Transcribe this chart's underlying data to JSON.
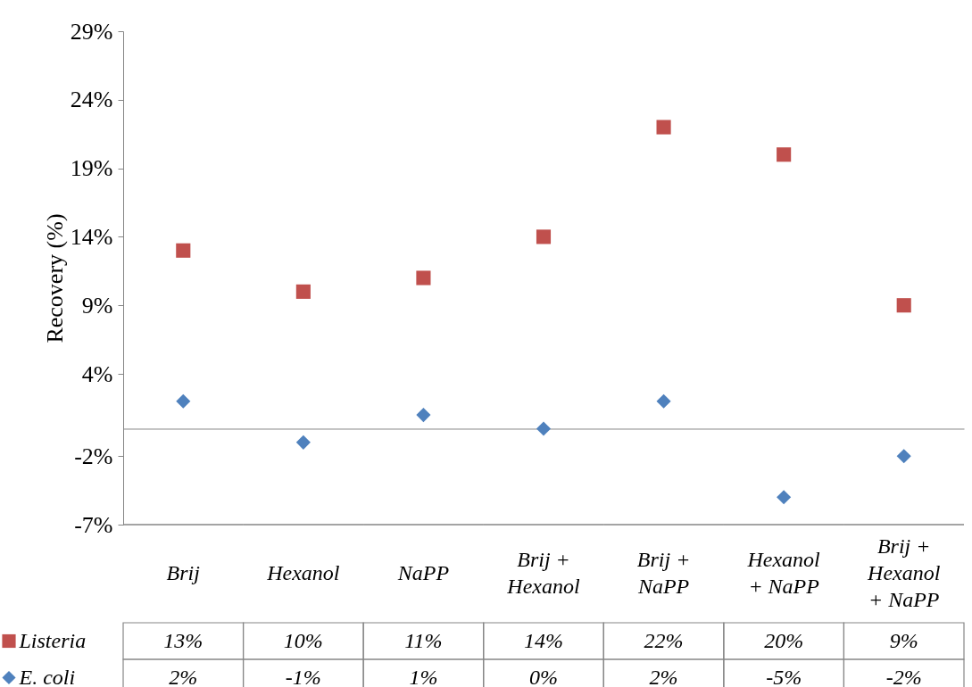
{
  "chart_data": {
    "type": "scatter",
    "ylabel": "Recovery (%)",
    "categories": [
      "Brij",
      "Hexanol",
      "NaPP",
      "Brij + Hexanol",
      "Brij + NaPP",
      "Hexanol + NaPP",
      "Brij + Hexanol + NaPP"
    ],
    "ylim": [
      -7,
      29
    ],
    "yticks": [
      {
        "value": -7,
        "label": "-7%"
      },
      {
        "value": -2,
        "label": "-2%"
      },
      {
        "value": 4,
        "label": "4%"
      },
      {
        "value": 9,
        "label": "9%"
      },
      {
        "value": 14,
        "label": "14%"
      },
      {
        "value": 19,
        "label": "19%"
      },
      {
        "value": 24,
        "label": "24%"
      },
      {
        "value": 29,
        "label": "29%"
      }
    ],
    "legend": "bottom",
    "series": [
      {
        "name": "Listeria",
        "color": "#c0504d",
        "marker": "square",
        "values": [
          13,
          10,
          11,
          14,
          22,
          20,
          9
        ],
        "value_labels": [
          "13%",
          "10%",
          "11%",
          "14%",
          "22%",
          "20%",
          "9%"
        ]
      },
      {
        "name": "E. coli",
        "color": "#4f81bd",
        "marker": "diamond",
        "values": [
          2,
          -1,
          1,
          0,
          2,
          -5,
          -2
        ],
        "value_labels": [
          "2%",
          "-1%",
          "1%",
          "0%",
          "2%",
          "-5%",
          "-2%"
        ]
      }
    ]
  }
}
